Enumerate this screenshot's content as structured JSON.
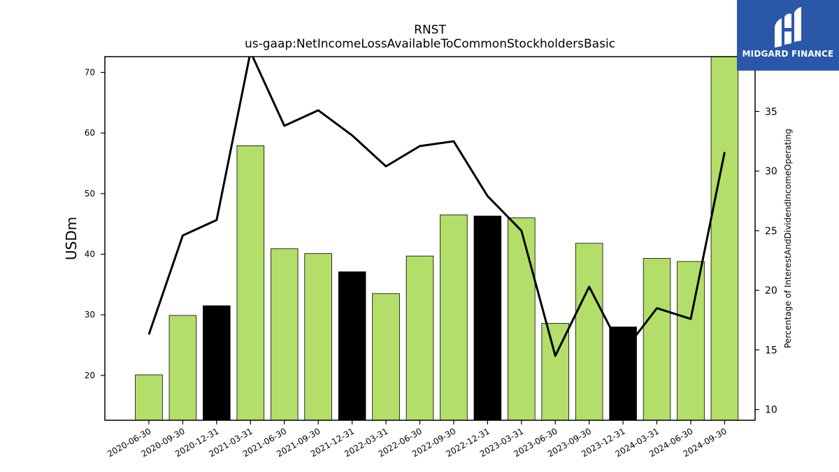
{
  "chart_data": {
    "type": "bar",
    "title": "RNST",
    "subtitle": "us-gaap:NetIncomeLossAvailableToCommonStockholdersBasic",
    "ylabel": "USDm",
    "y2label": "Percentage of InterestAndDividendIncomeOperating",
    "categories": [
      "2020-06-30",
      "2020-09-30",
      "2020-12-31",
      "2021-03-31",
      "2021-06-30",
      "2021-09-30",
      "2021-12-31",
      "2022-03-31",
      "2022-06-30",
      "2022-09-30",
      "2022-12-31",
      "2023-03-31",
      "2023-06-30",
      "2023-09-30",
      "2023-12-31",
      "2024-03-31",
      "2024-06-30",
      "2024-09-30"
    ],
    "values": [
      20.1,
      29.9,
      31.5,
      57.9,
      40.9,
      40.1,
      37.1,
      33.5,
      39.7,
      46.5,
      46.3,
      46.0,
      28.6,
      41.8,
      28.0,
      39.3,
      38.8,
      72.6
    ],
    "bar_colors": [
      "#b3de69",
      "#b3de69",
      "#000000",
      "#b3de69",
      "#b3de69",
      "#b3de69",
      "#000000",
      "#b3de69",
      "#b3de69",
      "#b3de69",
      "#000000",
      "#b3de69",
      "#b3de69",
      "#b3de69",
      "#000000",
      "#b3de69",
      "#b3de69",
      "#b3de69"
    ],
    "ylim": [
      12.6,
      72.6
    ],
    "yticks": [
      20,
      30,
      40,
      50,
      60,
      70
    ],
    "series2": {
      "values": [
        16.3,
        24.6,
        25.9,
        40.0,
        33.8,
        35.1,
        33.0,
        30.4,
        32.1,
        32.5,
        27.9,
        25.0,
        14.5,
        20.3,
        14.8,
        18.5,
        17.6,
        31.6
      ],
      "color": "#000000"
    },
    "y2lim": [
      9.1,
      39.6
    ],
    "y2ticks": [
      10,
      15,
      20,
      25,
      30,
      35
    ],
    "grid": false
  },
  "logo": {
    "text": "MIDGARD FINANCE",
    "bg": "#2a57a8"
  }
}
